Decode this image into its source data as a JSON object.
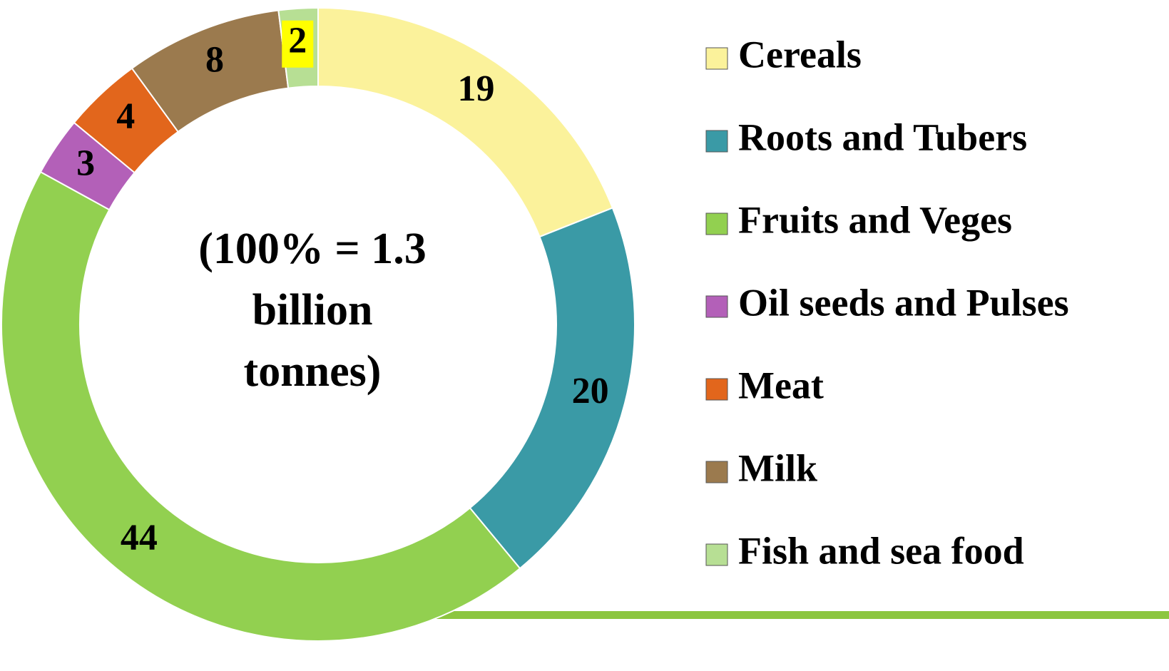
{
  "chart_data": {
    "type": "donut",
    "categories": [
      "Cereals",
      "Roots and Tubers",
      "Fruits and Veges",
      "Oil seeds and Pulses",
      "Meat",
      "Milk",
      "Fish and sea food"
    ],
    "values": [
      19,
      20,
      44,
      3,
      4,
      8,
      2
    ],
    "colors": [
      "#fbf29b",
      "#3a9aa6",
      "#92d050",
      "#b360b8",
      "#e2661c",
      "#9b7a4e",
      "#b7df94"
    ],
    "center_text": [
      "(100% = 1.3",
      "billion",
      "tonnes)"
    ],
    "legend": "right"
  }
}
